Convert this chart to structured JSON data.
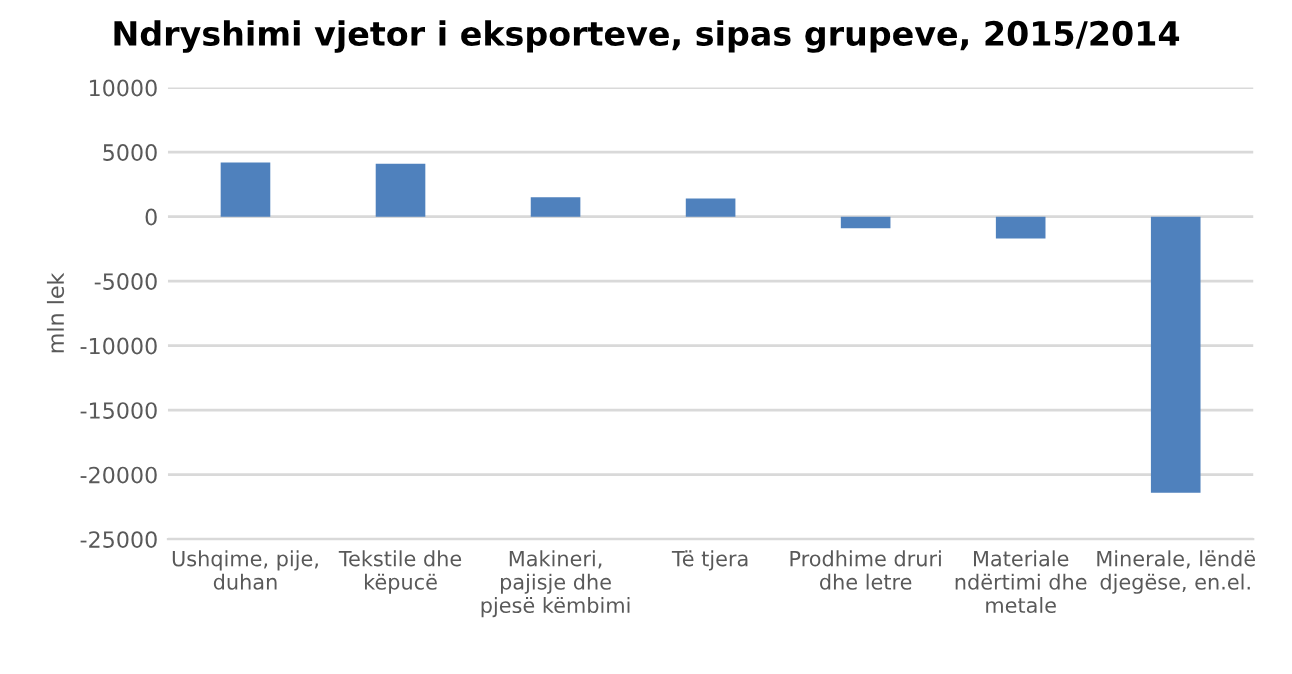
{
  "chart_data": {
    "type": "bar",
    "title": "Ndryshimi vjetor i eksporteve, sipas grupeve, 2015/2014",
    "ylabel": "mln lek",
    "categories": [
      "Ushqime, pije,\nduhan",
      "Tekstile dhe\nkëpucë",
      "Makineri,\npajisje dhe\npjesë këmbimi",
      "Të tjera",
      "Prodhime druri\ndhe letre",
      "Materiale\nndërtimi dhe\nmetale",
      "Minerale, lëndë\ndjegëse, en.el."
    ],
    "values": [
      4200,
      4100,
      1500,
      1400,
      -900,
      -1700,
      -21400
    ],
    "color": "#4f81bd",
    "ylim": [
      -25000,
      10000
    ],
    "yticks": [
      -25000,
      -20000,
      -15000,
      -10000,
      -5000,
      0,
      5000,
      10000
    ],
    "grid": "y",
    "legend": false
  }
}
